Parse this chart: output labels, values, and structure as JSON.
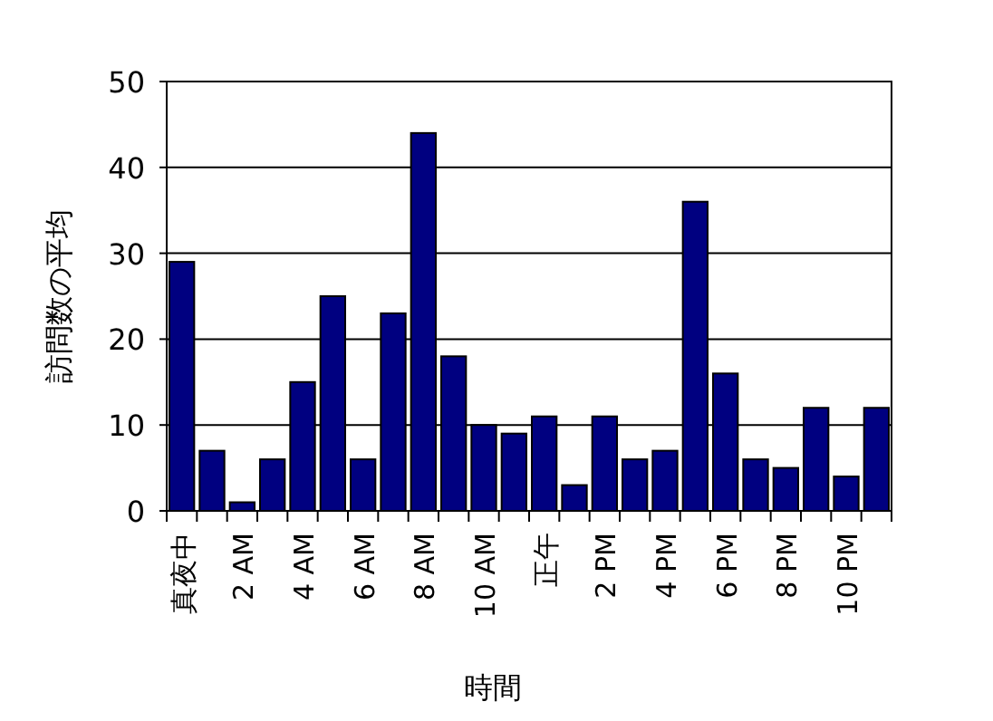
{
  "chart_data": {
    "type": "bar",
    "xlabel": "時間",
    "ylabel": "訪問数の平均",
    "categories": [
      "真夜中",
      null,
      "2 AM",
      null,
      "4 AM",
      null,
      "6 AM",
      null,
      "8 AM",
      null,
      "10 AM",
      null,
      "正午",
      null,
      "2 PM",
      null,
      "4 PM",
      null,
      "6 PM",
      null,
      "8 PM",
      null,
      "10 PM",
      null
    ],
    "values": [
      29,
      7,
      1,
      6,
      15,
      25,
      6,
      23,
      44,
      18,
      10,
      9,
      11,
      3,
      11,
      6,
      7,
      36,
      16,
      6,
      5,
      12,
      4,
      12
    ],
    "color": "#000080",
    "ylim": [
      0,
      50
    ],
    "yticks": [
      0,
      10,
      20,
      30,
      40,
      50
    ],
    "grid": "y"
  }
}
